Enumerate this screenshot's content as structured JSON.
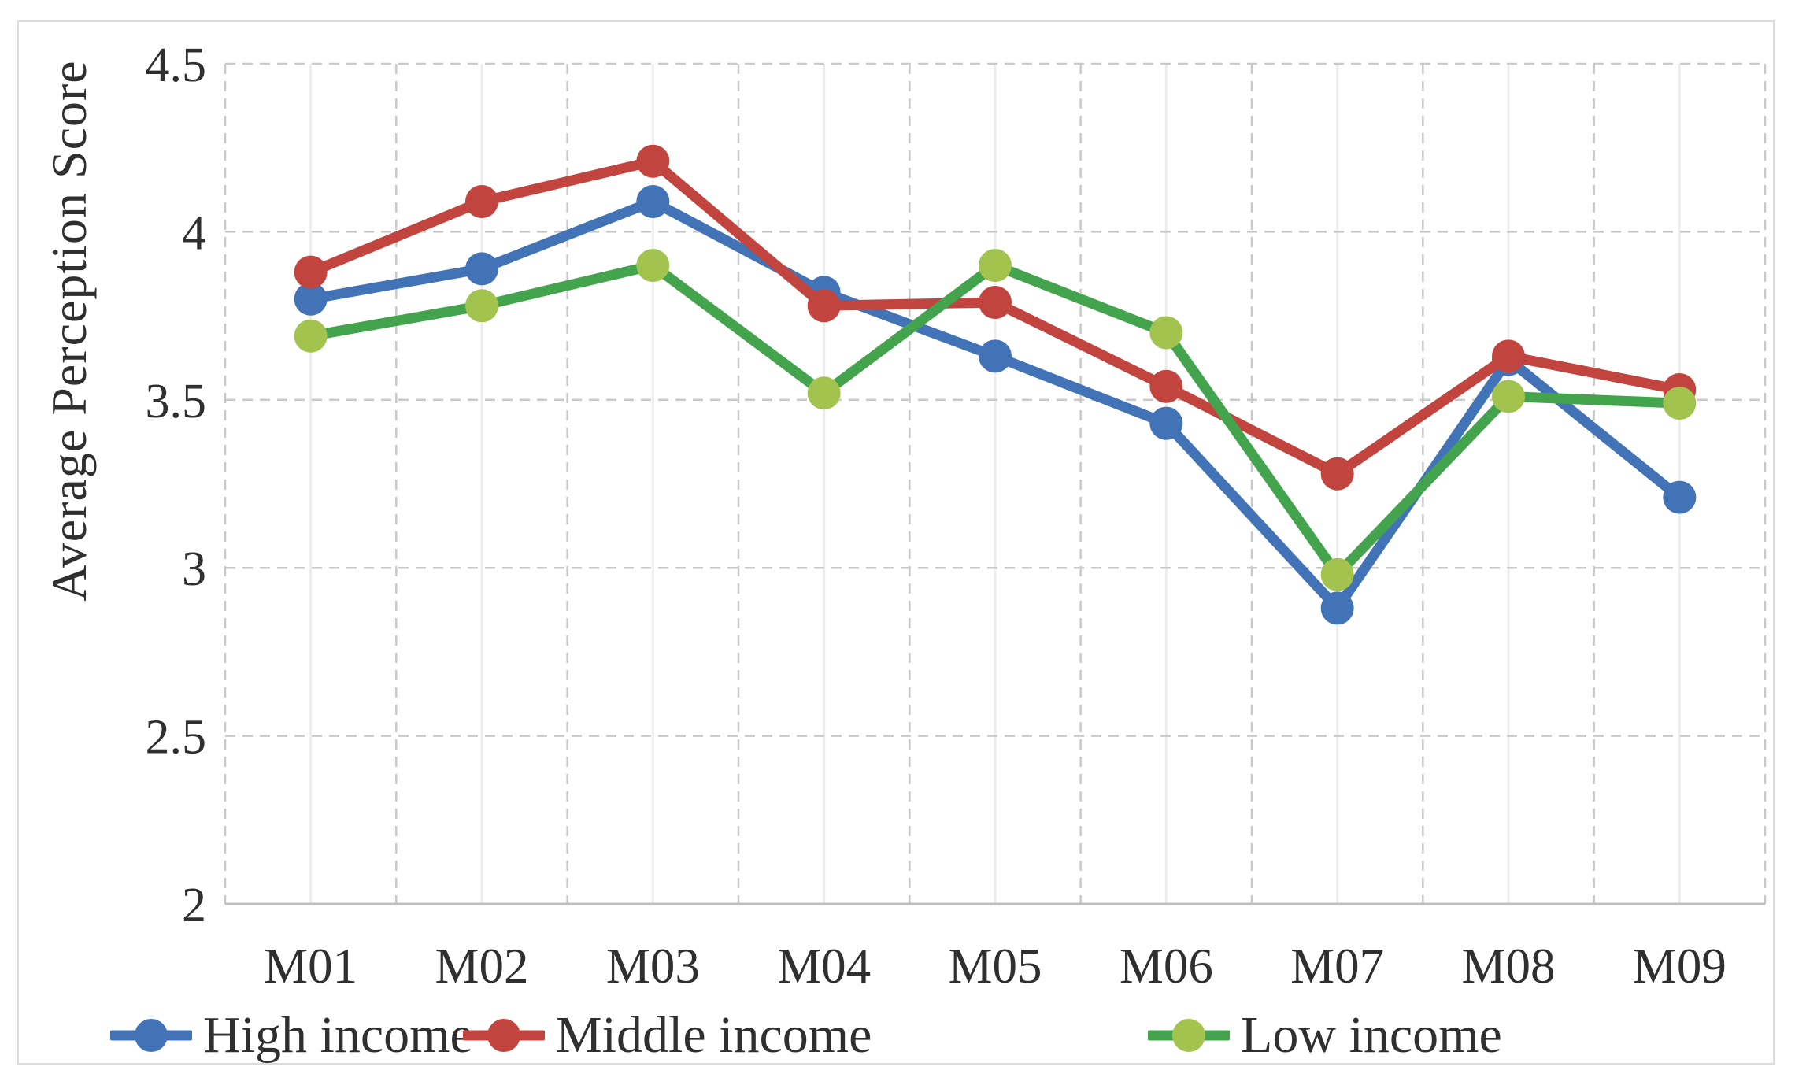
{
  "chart_data": {
    "type": "line",
    "title": "",
    "xlabel": "",
    "ylabel": "Average Perception Score",
    "ylim": [
      2,
      4.5
    ],
    "ytick_values": [
      4.5,
      4,
      3.5,
      3,
      2.5,
      2
    ],
    "ytick_labels": [
      "4.5",
      "4",
      "3.5",
      "3",
      "2.5",
      "2"
    ],
    "categories": [
      "M01",
      "M02",
      "M03",
      "M04",
      "M05",
      "M06",
      "M07",
      "M08",
      "M09"
    ],
    "series": [
      {
        "name": "High income",
        "color": "#4273b7",
        "marker_color": "#4273b7",
        "values": [
          3.8,
          3.89,
          4.09,
          3.82,
          3.63,
          3.43,
          2.88,
          3.62,
          3.21
        ]
      },
      {
        "name": "Middle income",
        "color": "#c2443f",
        "marker_color": "#c2443f",
        "values": [
          3.88,
          4.09,
          4.21,
          3.78,
          3.79,
          3.54,
          3.28,
          3.63,
          3.53
        ]
      },
      {
        "name": "Low income",
        "color": "#44a34d",
        "marker_color": "#a2c34e",
        "values": [
          3.69,
          3.78,
          3.9,
          3.52,
          3.9,
          3.7,
          2.98,
          3.51,
          3.49
        ]
      }
    ],
    "legend_position": "bottom",
    "grid": "dashed"
  },
  "style_colors": {
    "grid_dashed": "#c9c9c9",
    "grid_center": "#ededed",
    "axis_line": "#bfbfbf",
    "text": "#2f2f2f",
    "frame_border": "#dcdcdc"
  }
}
